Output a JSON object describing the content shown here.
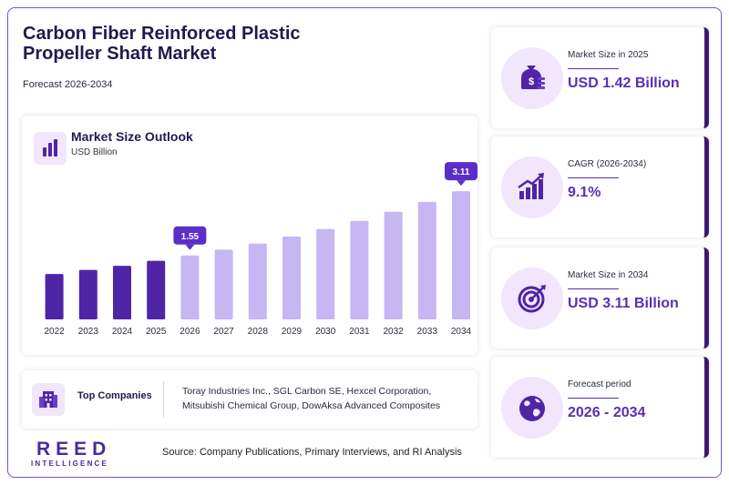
{
  "header": {
    "title": "Carbon Fiber Reinforced Plastic Propeller Shaft Market",
    "subtitle": "Forecast 2026-2034"
  },
  "chart_card": {
    "title": "Market Size Outlook",
    "unit": "USD Billion"
  },
  "chart_data": {
    "type": "bar",
    "title": "Market Size Outlook",
    "ylabel": "USD Billion",
    "categories": [
      "2022",
      "2023",
      "2024",
      "2025",
      "2026",
      "2027",
      "2028",
      "2029",
      "2030",
      "2031",
      "2032",
      "2033",
      "2034"
    ],
    "values": [
      1.1,
      1.2,
      1.3,
      1.42,
      1.55,
      1.69,
      1.84,
      2.01,
      2.19,
      2.39,
      2.61,
      2.85,
      3.11
    ],
    "ylim": [
      0,
      3.2
    ],
    "historical_color": "#4f25a6",
    "forecast_color": "#c6b6f2",
    "callout_color": "#5a2fc9",
    "callouts": [
      {
        "category": "2026",
        "label": "1.55"
      },
      {
        "category": "2034",
        "label": "3.11"
      }
    ]
  },
  "top_companies": {
    "label": "Top Companies",
    "text": "Toray Industries Inc., SGL Carbon SE, Hexcel Corporation, Mitsubishi Chemical Group, DowAksa Advanced Composites"
  },
  "logo": {
    "main": "REED",
    "sub": "INTELLIGENCE"
  },
  "source": "Source: Company Publications, Primary Interviews, and RI Analysis",
  "stats": [
    {
      "label": "Market Size in 2025",
      "value": "USD 1.42 Billion",
      "icon": "money-bag-icon"
    },
    {
      "label": "CAGR (2026-2034)",
      "value": "9.1%",
      "icon": "growth-chart-icon"
    },
    {
      "label": "Market Size in 2034",
      "value": "USD 3.11 Billion",
      "icon": "target-icon"
    },
    {
      "label": "Forecast period",
      "value": "2026 - 2034",
      "icon": "globe-icon"
    }
  ],
  "colors": {
    "accent": "#5a2fb4",
    "dark": "#24184f",
    "icon_bg": "#f1e6fb",
    "card_edge": "#3a1a6e"
  }
}
